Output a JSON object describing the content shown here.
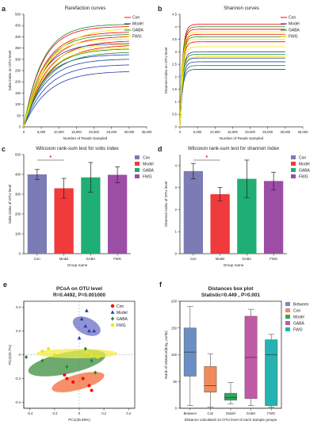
{
  "colors": {
    "con": "#ff0000",
    "model": "#1f3fa8",
    "gaba": "#1f8a2e",
    "fwg": "#f2e600",
    "bar_con": "#7b7bb5",
    "bar_model": "#ef3b3b",
    "bar_gaba": "#1fae73",
    "bar_fwg": "#9c4ea6",
    "box_between": "#6b8fc4",
    "box_con": "#f08b5c",
    "box_model": "#30a55d",
    "box_gaba": "#c05aa6",
    "box_fwg": "#24b3b0"
  },
  "chart_data": [
    {
      "panel": "a",
      "type": "line",
      "title": "Rarefaction curves",
      "xlabel": "Number of Reads Sampled",
      "ylabel": "Sobs index on OTU level",
      "xlim": [
        0,
        35000
      ],
      "ylim": [
        0,
        500
      ],
      "xticks": [
        "0",
        "5,000",
        "10,000",
        "15,000",
        "20,000",
        "25,000",
        "30,000",
        "35,000"
      ],
      "yticks": [
        "0",
        "50",
        "100",
        "150",
        "200",
        "250",
        "300",
        "350",
        "400",
        "450",
        "500"
      ],
      "legend": [
        "Con",
        "Model",
        "GABA",
        "FWG"
      ],
      "legend_position": "top-right",
      "x_end": 30000,
      "series": [
        {
          "group": "Con",
          "final": 445
        },
        {
          "group": "Con",
          "final": 420
        },
        {
          "group": "Con",
          "final": 400
        },
        {
          "group": "Con",
          "final": 380
        },
        {
          "group": "Con",
          "final": 360
        },
        {
          "group": "Model",
          "final": 370
        },
        {
          "group": "Model",
          "final": 320
        },
        {
          "group": "Model",
          "final": 300
        },
        {
          "group": "Model",
          "final": 275
        },
        {
          "group": "Model",
          "final": 245
        },
        {
          "group": "GABA",
          "final": 455
        },
        {
          "group": "GABA",
          "final": 410
        },
        {
          "group": "GABA",
          "final": 345
        },
        {
          "group": "GABA",
          "final": 330
        },
        {
          "group": "FWG",
          "final": 435
        },
        {
          "group": "FWG",
          "final": 390
        },
        {
          "group": "FWG",
          "final": 365
        },
        {
          "group": "FWG",
          "final": 350
        }
      ]
    },
    {
      "panel": "b",
      "type": "line",
      "title": "Shannon curves",
      "xlabel": "Number of Reads Sampled",
      "ylabel": "Shannon index on OTU level",
      "xlim": [
        0,
        35000
      ],
      "ylim": [
        0,
        4.5
      ],
      "xticks": [
        "0",
        "5,000",
        "10,000",
        "15,000",
        "20,000",
        "25,000",
        "30,000",
        "35,000"
      ],
      "yticks": [
        "0",
        "0.5",
        "1",
        "1.5",
        "2",
        "2.5",
        "3",
        "3.5",
        "4",
        "4.5"
      ],
      "legend": [
        "Con",
        "Model",
        "GABA",
        "FWG"
      ],
      "legend_position": "top-right",
      "x_end": 30000,
      "series": [
        {
          "group": "Con",
          "final": 4.1
        },
        {
          "group": "Con",
          "final": 3.9
        },
        {
          "group": "Con",
          "final": 3.7
        },
        {
          "group": "Con",
          "final": 3.4
        },
        {
          "group": "Model",
          "final": 3.0
        },
        {
          "group": "Model",
          "final": 2.75
        },
        {
          "group": "Model",
          "final": 2.6
        },
        {
          "group": "Model",
          "final": 2.3
        },
        {
          "group": "GABA",
          "final": 4.0
        },
        {
          "group": "GABA",
          "final": 3.6
        },
        {
          "group": "GABA",
          "final": 2.9
        },
        {
          "group": "GABA",
          "final": 2.45
        },
        {
          "group": "FWG",
          "final": 3.8
        },
        {
          "group": "FWG",
          "final": 3.5
        },
        {
          "group": "FWG",
          "final": 3.2
        },
        {
          "group": "FWG",
          "final": 2.8
        }
      ]
    },
    {
      "panel": "c",
      "type": "bar",
      "title": "Wilcoxon rank-sum test for sobs index",
      "xlabel": "Group name",
      "ylabel": "Sobs index of OTU level",
      "ylim": [
        0,
        500
      ],
      "yticks": [
        "0",
        "100",
        "200",
        "300",
        "400",
        "500"
      ],
      "categories": [
        "Con",
        "Model",
        "GABA",
        "FWG"
      ],
      "values": [
        400,
        330,
        385,
        398
      ],
      "errors": [
        25,
        50,
        75,
        40
      ],
      "legend": [
        "Con",
        "Model",
        "GABA",
        "FWG"
      ],
      "legend_position": "right",
      "significance": {
        "between": [
          "Con",
          "Model"
        ],
        "label": "*"
      }
    },
    {
      "panel": "d",
      "type": "bar",
      "title": "Wilcoxon rank-sum test for shannon index",
      "xlabel": "Group name",
      "ylabel": "Shannon index of OTU level",
      "ylim": [
        0,
        4.5
      ],
      "yticks": [
        "0",
        "1",
        "2",
        "3",
        "4"
      ],
      "categories": [
        "Con",
        "Model",
        "GABA",
        "FWG"
      ],
      "values": [
        3.75,
        2.7,
        3.4,
        3.3
      ],
      "errors": [
        0.35,
        0.3,
        0.85,
        0.4
      ],
      "legend": [
        "Con",
        "Model",
        "GABA",
        "FWG"
      ],
      "legend_position": "right",
      "significance": {
        "between": [
          "Con",
          "Model"
        ],
        "label": "*"
      }
    },
    {
      "panel": "e",
      "type": "scatter",
      "title": "PCoA on OTU level",
      "subtitle": "R=0.4492, P=0.001000",
      "xlabel": "PC1(35.96%)",
      "ylabel": "PC2(20.7%)",
      "xlim": [
        -0.45,
        0.45
      ],
      "ylim": [
        -0.45,
        0.45
      ],
      "xticks": [
        "-0.4",
        "-0.2",
        "0",
        "0.2",
        "0.4"
      ],
      "yticks": [
        "-0.4",
        "-0.2",
        "0",
        "0.2",
        "0.4"
      ],
      "legend": [
        "Con",
        "Model",
        "GABA",
        "FWG"
      ],
      "legend_position": "top-right",
      "series": [
        {
          "name": "Con",
          "marker": "circle",
          "points": [
            [
              -0.12,
              -0.17
            ],
            [
              -0.1,
              -0.2
            ],
            [
              0.03,
              -0.2
            ],
            [
              0.08,
              -0.26
            ],
            [
              0.1,
              -0.3
            ],
            [
              -0.05,
              -0.23
            ]
          ]
        },
        {
          "name": "Model",
          "marker": "triangle",
          "points": [
            [
              0.02,
              0.3
            ],
            [
              0.05,
              0.24
            ],
            [
              0.08,
              0.2
            ],
            [
              0.0,
              0.14
            ],
            [
              0.06,
              0.37
            ],
            [
              0.12,
              0.2
            ]
          ]
        },
        {
          "name": "GABA",
          "marker": "diamond",
          "points": [
            [
              -0.43,
              -0.02
            ],
            [
              -0.1,
              -0.1
            ],
            [
              0.1,
              -0.05
            ],
            [
              0.13,
              -0.15
            ],
            [
              -0.3,
              -0.05
            ],
            [
              0.05,
              0.05
            ]
          ]
        },
        {
          "name": "FWG",
          "marker": "circle",
          "points": [
            [
              -0.3,
              0.03
            ],
            [
              -0.25,
              0.05
            ],
            [
              -0.2,
              0.0
            ],
            [
              0.06,
              0.02
            ],
            [
              0.1,
              0.0
            ],
            [
              0.15,
              -0.02
            ]
          ]
        }
      ],
      "ellipses": [
        {
          "name": "Con",
          "cx": -0.01,
          "cy": -0.23,
          "rx": 0.22,
          "ry": 0.065,
          "angle": -15
        },
        {
          "name": "Model",
          "cx": 0.06,
          "cy": 0.24,
          "rx": 0.12,
          "ry": 0.07,
          "angle": 25
        },
        {
          "name": "GABA",
          "cx": -0.1,
          "cy": -0.07,
          "rx": 0.32,
          "ry": 0.09,
          "angle": -12
        },
        {
          "name": "FWG",
          "cx": -0.02,
          "cy": 0.01,
          "rx": 0.33,
          "ry": 0.04,
          "angle": 0
        }
      ]
    },
    {
      "panel": "f",
      "type": "box",
      "title": "Distances box plot",
      "subtitle": "Statistic=0.449 , P=0.001",
      "xlabel": "Distance calculated on OTU level of each Sample groups",
      "ylabel": "Rank of Distance(bray_curtis)",
      "ylim": [
        0,
        200
      ],
      "yticks": [
        "0",
        "50",
        "100",
        "150",
        "200"
      ],
      "categories": [
        "Between",
        "Con",
        "Model",
        "GABA",
        "FWG"
      ],
      "boxes": [
        {
          "name": "Between",
          "min": 5,
          "q1": 60,
          "median": 105,
          "q3": 150,
          "max": 190
        },
        {
          "name": "Con",
          "min": 2,
          "q1": 30,
          "median": 42,
          "q3": 78,
          "max": 102
        },
        {
          "name": "Model",
          "min": 8,
          "q1": 15,
          "median": 20,
          "q3": 28,
          "max": 48
        },
        {
          "name": "GABA",
          "min": 5,
          "q1": 18,
          "median": 95,
          "q3": 172,
          "max": 185
        },
        {
          "name": "FWG",
          "min": 2,
          "q1": 5,
          "median": 100,
          "q3": 128,
          "max": 138
        }
      ],
      "legend": [
        "Between",
        "Con",
        "Model",
        "GABA",
        "FWG"
      ],
      "legend_position": "top-right"
    }
  ],
  "panel_labels": [
    "a",
    "b",
    "c",
    "d",
    "e",
    "f"
  ]
}
